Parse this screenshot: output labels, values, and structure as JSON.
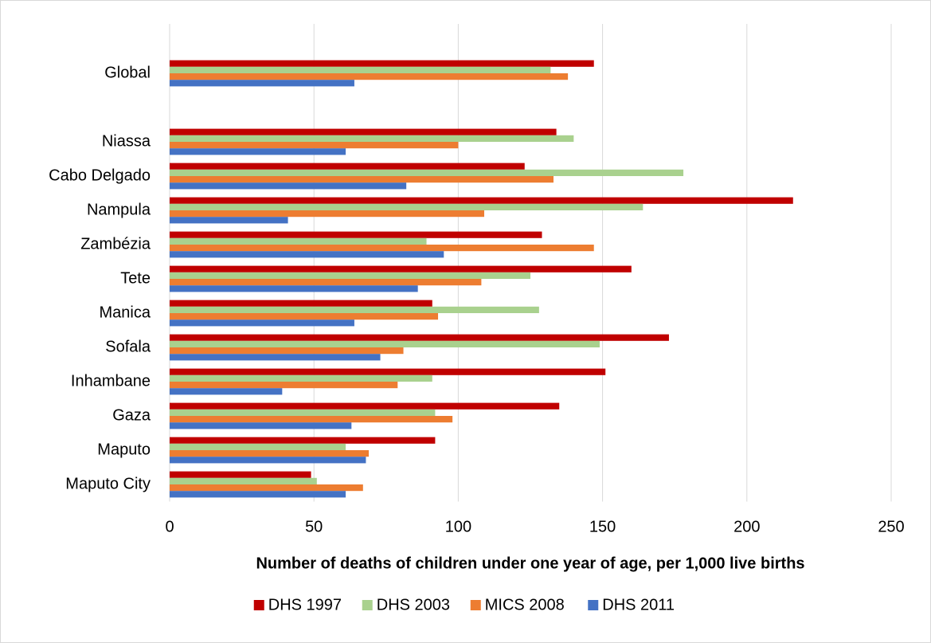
{
  "chart_data": {
    "type": "hbar",
    "xlabel": "Number of deaths of children under one year of age, per 1,000 live births",
    "categories": [
      "Global",
      null,
      "Niassa",
      "Cabo Delgado",
      "Nampula",
      "Zambézia",
      "Tete",
      "Manica",
      "Sofala",
      "Inhambane",
      "Gaza",
      "Maputo",
      "Maputo City"
    ],
    "series": [
      {
        "name": "DHS 1997",
        "color": "#c00000",
        "values": [
          147,
          null,
          134,
          123,
          216,
          129,
          160,
          91,
          173,
          151,
          135,
          92,
          49
        ]
      },
      {
        "name": "DHS 2003",
        "color": "#a9d18e",
        "values": [
          132,
          null,
          140,
          178,
          164,
          89,
          125,
          128,
          149,
          91,
          92,
          61,
          51
        ]
      },
      {
        "name": "MICS 2008",
        "color": "#ed7d31",
        "values": [
          138,
          null,
          100,
          133,
          109,
          147,
          108,
          93,
          81,
          79,
          98,
          69,
          67
        ]
      },
      {
        "name": "DHS 2011",
        "color": "#4472c4",
        "values": [
          64,
          null,
          61,
          82,
          41,
          95,
          86,
          64,
          73,
          39,
          63,
          68,
          61
        ]
      }
    ],
    "xlim": [
      0,
      250
    ],
    "xticks": [
      0,
      50,
      100,
      150,
      200,
      250
    ],
    "grid": true,
    "legend": "bottom"
  }
}
